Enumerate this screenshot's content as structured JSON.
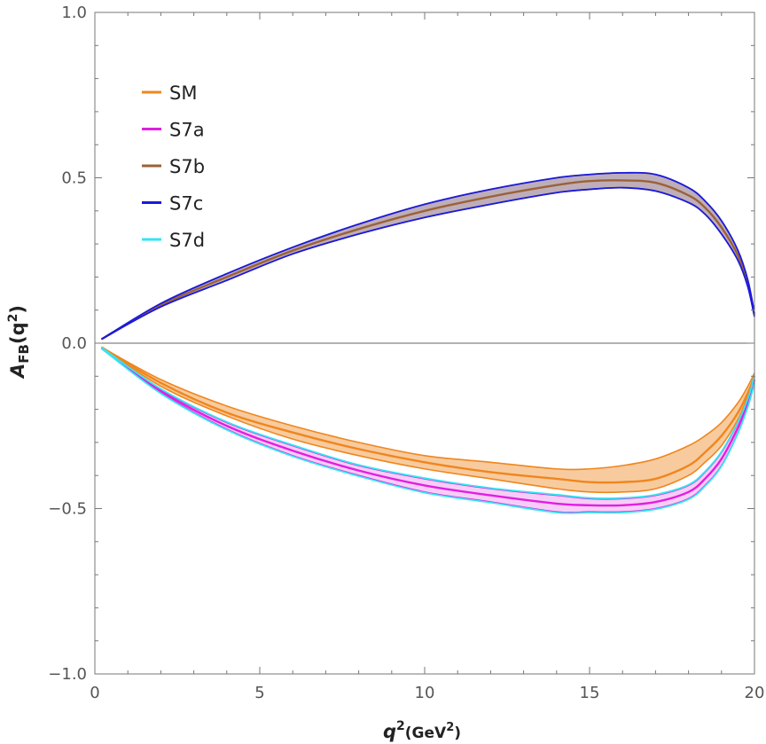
{
  "chart_data": {
    "type": "line",
    "title": "",
    "xlabel": {
      "base": "q",
      "sup": "2",
      "unit_open": "(GeV",
      "unit_sup": "2",
      "unit_close": ")"
    },
    "ylabel": {
      "base": "A",
      "sub": "FB",
      "open": "(q",
      "sup": "2",
      "close": ")"
    },
    "xlim": [
      0,
      20
    ],
    "ylim": [
      -1.0,
      1.0
    ],
    "x_ticks": [
      {
        "value": 0,
        "label": "0"
      },
      {
        "value": 5,
        "label": "5"
      },
      {
        "value": 10,
        "label": "10"
      },
      {
        "value": 15,
        "label": "15"
      },
      {
        "value": 20,
        "label": "20"
      }
    ],
    "y_ticks": [
      {
        "value": 1.0,
        "label": "1.0"
      },
      {
        "value": 0.5,
        "label": "0.5"
      },
      {
        "value": 0.0,
        "label": "0.0"
      },
      {
        "value": -0.5,
        "label": "−0.5"
      },
      {
        "value": -1.0,
        "label": "−1.0"
      }
    ],
    "zero_line": true,
    "legend_position": "top-left",
    "x": [
      0.2,
      2,
      4,
      6,
      8,
      10,
      12,
      14,
      15,
      16,
      17,
      18,
      18.5,
      19,
      19.5,
      19.8,
      20
    ],
    "series": [
      {
        "name": "SM",
        "color": "#f0861d",
        "band_fill": "#f7c28e",
        "upper": [
          -0.012,
          -0.11,
          -0.19,
          -0.25,
          -0.3,
          -0.34,
          -0.36,
          -0.38,
          -0.38,
          -0.37,
          -0.35,
          -0.31,
          -0.28,
          -0.24,
          -0.18,
          -0.13,
          -0.09
        ],
        "central": [
          -0.012,
          -0.12,
          -0.21,
          -0.27,
          -0.32,
          -0.36,
          -0.39,
          -0.41,
          -0.42,
          -0.42,
          -0.41,
          -0.37,
          -0.33,
          -0.28,
          -0.21,
          -0.15,
          -0.1
        ],
        "lower": [
          -0.012,
          -0.13,
          -0.22,
          -0.29,
          -0.34,
          -0.38,
          -0.41,
          -0.44,
          -0.45,
          -0.45,
          -0.44,
          -0.4,
          -0.36,
          -0.31,
          -0.23,
          -0.16,
          -0.11
        ]
      },
      {
        "name": "S7a",
        "color": "#e11fe1",
        "band_fill": "#f6c4f6",
        "upper": [
          -0.015,
          -0.14,
          -0.24,
          -0.31,
          -0.37,
          -0.41,
          -0.44,
          -0.46,
          -0.47,
          -0.47,
          -0.46,
          -0.43,
          -0.39,
          -0.33,
          -0.24,
          -0.17,
          -0.1
        ],
        "central": [
          -0.015,
          -0.145,
          -0.25,
          -0.325,
          -0.385,
          -0.43,
          -0.46,
          -0.485,
          -0.49,
          -0.49,
          -0.48,
          -0.45,
          -0.41,
          -0.35,
          -0.255,
          -0.18,
          -0.11
        ],
        "lower": [
          -0.015,
          -0.15,
          -0.26,
          -0.34,
          -0.4,
          -0.45,
          -0.48,
          -0.51,
          -0.51,
          -0.51,
          -0.5,
          -0.47,
          -0.43,
          -0.37,
          -0.27,
          -0.19,
          -0.12
        ]
      },
      {
        "name": "S7b",
        "color": "#9b6237",
        "band_fill": "#b3a0ae",
        "upper": [
          0.012,
          0.12,
          0.21,
          0.29,
          0.36,
          0.42,
          0.465,
          0.5,
          0.51,
          0.515,
          0.51,
          0.47,
          0.43,
          0.37,
          0.28,
          0.19,
          0.09
        ],
        "central": [
          0.012,
          0.115,
          0.2,
          0.28,
          0.345,
          0.4,
          0.443,
          0.478,
          0.49,
          0.492,
          0.485,
          0.447,
          0.41,
          0.35,
          0.265,
          0.18,
          0.085
        ],
        "lower": [
          0.012,
          0.11,
          0.19,
          0.27,
          0.33,
          0.38,
          0.42,
          0.455,
          0.465,
          0.47,
          0.46,
          0.425,
          0.39,
          0.33,
          0.25,
          0.17,
          0.08
        ]
      },
      {
        "name": "S7c",
        "color": "#1a1adc",
        "band_fill": "none",
        "upper": [
          0.012,
          0.12,
          0.21,
          0.29,
          0.36,
          0.42,
          0.465,
          0.5,
          0.51,
          0.515,
          0.51,
          0.47,
          0.43,
          0.37,
          0.28,
          0.19,
          0.09
        ],
        "central": [],
        "lower": [
          0.012,
          0.11,
          0.19,
          0.27,
          0.33,
          0.38,
          0.42,
          0.455,
          0.465,
          0.47,
          0.46,
          0.425,
          0.39,
          0.33,
          0.25,
          0.17,
          0.08
        ]
      },
      {
        "name": "S7d",
        "color": "#33e6f2",
        "band_fill": "none",
        "upper": [
          -0.013,
          -0.138,
          -0.238,
          -0.308,
          -0.368,
          -0.408,
          -0.438,
          -0.458,
          -0.468,
          -0.468,
          -0.458,
          -0.428,
          -0.388,
          -0.328,
          -0.238,
          -0.168,
          -0.098
        ],
        "central": [],
        "lower": [
          -0.016,
          -0.152,
          -0.262,
          -0.342,
          -0.402,
          -0.452,
          -0.482,
          -0.512,
          -0.512,
          -0.512,
          -0.502,
          -0.472,
          -0.432,
          -0.372,
          -0.272,
          -0.192,
          -0.122
        ]
      }
    ]
  }
}
